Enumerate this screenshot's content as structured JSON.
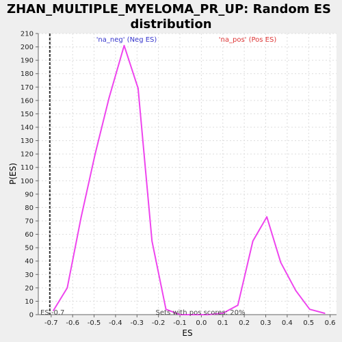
{
  "chart_data": {
    "type": "line",
    "title": "ZHAN_MULTIPLE_MYELOMA_PR_UP: Random ES distribution",
    "title_lines": [
      "ZHAN_MULTIPLE_MYELOMA_PR_UP: Random ES",
      "distribution"
    ],
    "xlabel": "ES",
    "ylabel": "P(ES)",
    "xlim": [
      -0.76,
      0.63
    ],
    "ylim": [
      0,
      210
    ],
    "x_ticks": [
      -0.7,
      -0.6,
      -0.5,
      -0.4,
      -0.3,
      -0.2,
      -0.1,
      0.0,
      0.1,
      0.2,
      0.3,
      0.4,
      0.5,
      0.6
    ],
    "x_tick_labels": [
      "-0.7",
      "-0.6",
      "-0.5",
      "-0.4",
      "-0.3",
      "-0.2",
      "-0.1",
      "0.0",
      "0.1",
      "0.2",
      "0.3",
      "0.4",
      "0.5",
      "0.6"
    ],
    "y_ticks": [
      0,
      10,
      20,
      30,
      40,
      50,
      60,
      70,
      80,
      90,
      100,
      110,
      120,
      130,
      140,
      150,
      160,
      170,
      180,
      190,
      200,
      210
    ],
    "grid": true,
    "series": [
      {
        "color": "#ee44ee",
        "x": [
          -0.69,
          -0.625,
          -0.56,
          -0.495,
          -0.43,
          -0.36,
          -0.295,
          -0.23,
          -0.165,
          -0.1,
          -0.035,
          0.03,
          0.1,
          0.17,
          0.24,
          0.305,
          0.37,
          0.44,
          0.505,
          0.575
        ],
        "y": [
          3,
          20,
          73,
          120,
          162,
          201,
          169,
          55,
          4,
          0,
          0,
          0,
          1,
          7,
          55,
          73,
          39,
          18,
          4,
          1
        ]
      }
    ],
    "annotations": {
      "neg_label": "'na_neg' (Neg ES)",
      "neg_color": "#3333cc",
      "pos_label": "'na_pos' (Pos ES)",
      "pos_color": "#dd3333",
      "es_line_x": -0.7,
      "es_label": "ES -0.7",
      "pos_scores_label": "Sets with pos scores: 20%"
    }
  }
}
